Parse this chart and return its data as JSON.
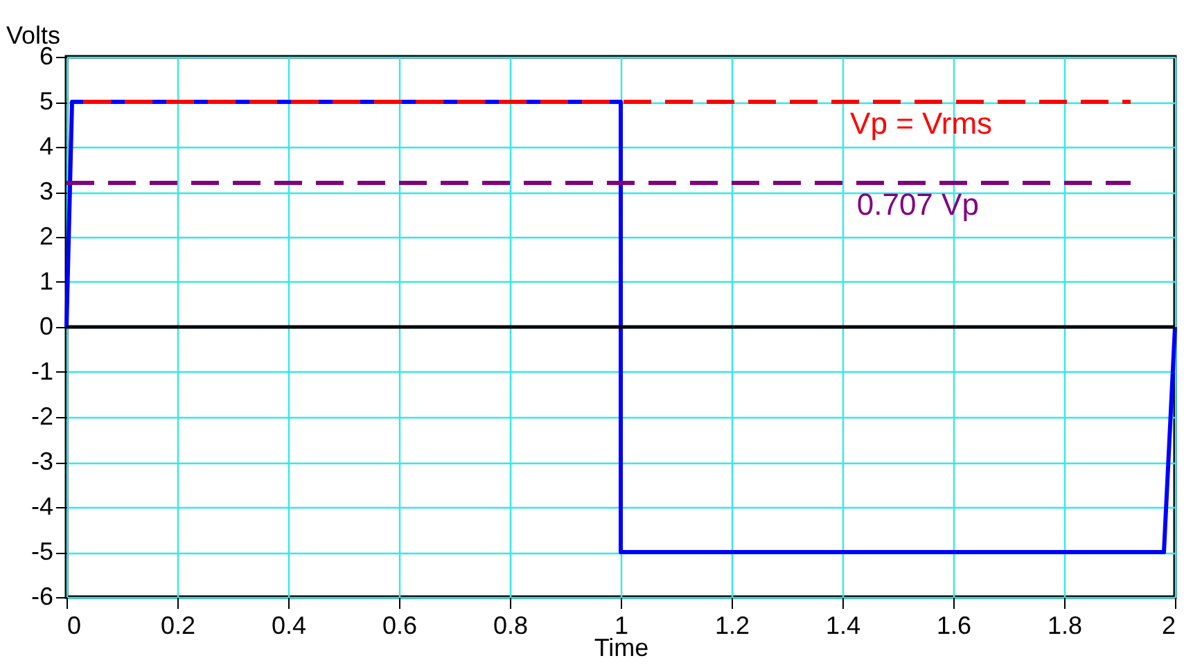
{
  "chart_data": {
    "type": "line",
    "xlabel": "Time",
    "ylabel": "Volts",
    "xlim": [
      0,
      2
    ],
    "xticks": [
      0,
      0.2,
      0.4,
      0.6,
      0.8,
      1,
      1.2,
      1.4,
      1.6,
      1.8,
      2
    ],
    "ylim": [
      -6,
      6
    ],
    "yticks": [
      -6,
      -5,
      -4,
      -3,
      -2,
      -1,
      0,
      1,
      2,
      3,
      4,
      5,
      6
    ],
    "grid": true,
    "series": [
      {
        "color": "#0000ff",
        "x": [
          0,
          0.01,
          1,
          1,
          1.98,
          2
        ],
        "values": [
          0,
          5,
          5,
          -5,
          -5,
          0
        ],
        "line_style": "solid"
      },
      {
        "name": "Vp = Vrms",
        "color": "#ff0000",
        "x": [
          0.03,
          1.92
        ],
        "values": [
          5,
          5
        ],
        "line_style": "dashed"
      },
      {
        "name": "0.707 Vp",
        "color": "#800080",
        "x": [
          0.0,
          1.92
        ],
        "values": [
          3.2,
          3.2
        ],
        "line_style": "dashed"
      }
    ],
    "ref_lines": [
      {
        "axis": "y",
        "value": 0,
        "color": "#000000"
      }
    ]
  }
}
